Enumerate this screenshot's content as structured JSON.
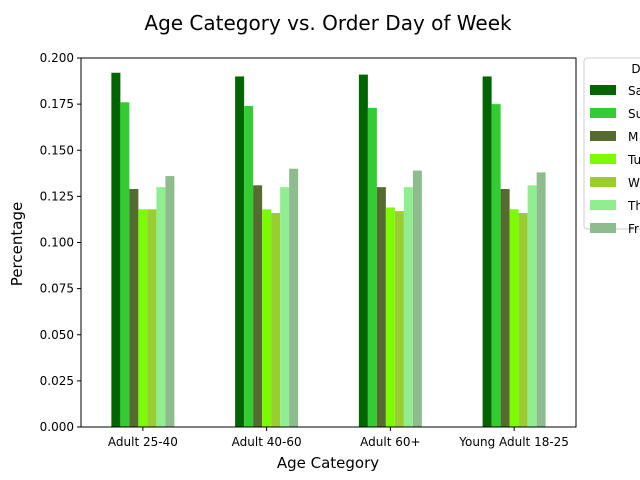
{
  "chart_data": {
    "type": "bar",
    "title": "Age Category vs. Order Day of Week",
    "xlabel": "Age Category",
    "ylabel": "Percentage",
    "ylim": [
      0,
      0.2
    ],
    "yticks": [
      "0.000",
      "0.025",
      "0.050",
      "0.075",
      "0.100",
      "0.125",
      "0.150",
      "0.175",
      "0.200"
    ],
    "categories": [
      "Adult 25-40",
      "Adult 40-60",
      "Adult 60+",
      "Young Adult 18-25"
    ],
    "legend": {
      "title": "D",
      "placement": "outside-top-right"
    },
    "series": [
      {
        "name": "Sa",
        "color": "#006400",
        "values": [
          0.192,
          0.19,
          0.191,
          0.19
        ]
      },
      {
        "name": "Su",
        "color": "#32CD32",
        "values": [
          0.176,
          0.174,
          0.173,
          0.175
        ]
      },
      {
        "name": "M",
        "color": "#556B2F",
        "values": [
          0.129,
          0.131,
          0.13,
          0.129
        ]
      },
      {
        "name": "Tu",
        "color": "#7CFC00",
        "values": [
          0.118,
          0.118,
          0.119,
          0.118
        ]
      },
      {
        "name": "W",
        "color": "#9ACD32",
        "values": [
          0.118,
          0.116,
          0.117,
          0.116
        ]
      },
      {
        "name": "Th",
        "color": "#90EE90",
        "values": [
          0.13,
          0.13,
          0.13,
          0.131
        ]
      },
      {
        "name": "Fr",
        "color": "#8FBC8F",
        "values": [
          0.136,
          0.14,
          0.139,
          0.138
        ]
      }
    ]
  }
}
